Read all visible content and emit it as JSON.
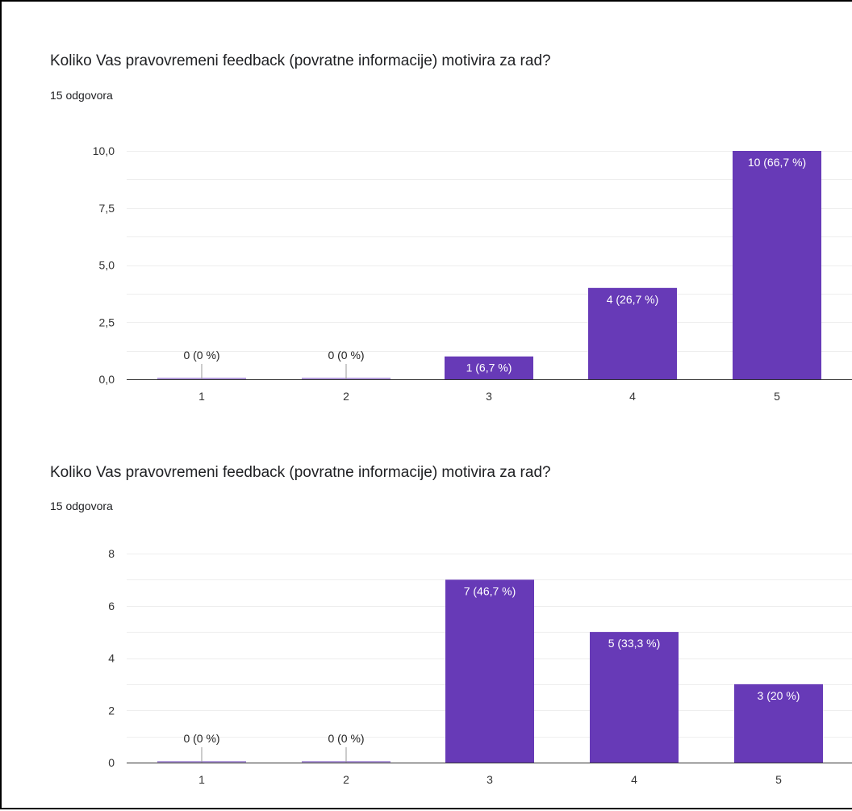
{
  "colors": {
    "bar": "#673ab7",
    "bar_label_inside": "#ffffff",
    "bar_label_outside": "#222222",
    "grid": "#eeeeee",
    "baseline": "#333333",
    "text": "#202124",
    "frame_border": "#000000"
  },
  "chart_data": [
    {
      "type": "bar",
      "title": "Koliko Vas pravovremeni feedback (povratne informacije) motivira za rad?",
      "subtitle": "15 odgovora",
      "categories": [
        "1",
        "2",
        "3",
        "4",
        "5"
      ],
      "values": [
        0,
        0,
        1,
        4,
        10
      ],
      "labels": [
        "0 (0 %)",
        "0 (0 %)",
        "1 (6,7 %)",
        "4 (26,7 %)",
        "10 (66,7 %)"
      ],
      "yticks": [
        "0,0",
        "2,5",
        "5,0",
        "7,5",
        "10,0"
      ],
      "ylim": [
        0,
        10
      ],
      "grid": true
    },
    {
      "type": "bar",
      "title": "Koliko Vas pravovremeni feedback (povratne informacije) motivira za rad?",
      "subtitle": "15 odgovora",
      "categories": [
        "1",
        "2",
        "3",
        "4",
        "5"
      ],
      "values": [
        0,
        0,
        7,
        5,
        3
      ],
      "labels": [
        "0 (0 %)",
        "0 (0 %)",
        "7 (46,7 %)",
        "5 (33,3 %)",
        "3 (20 %)"
      ],
      "yticks": [
        "0",
        "2",
        "4",
        "6",
        "8"
      ],
      "ylim": [
        0,
        8
      ],
      "grid": true
    }
  ]
}
